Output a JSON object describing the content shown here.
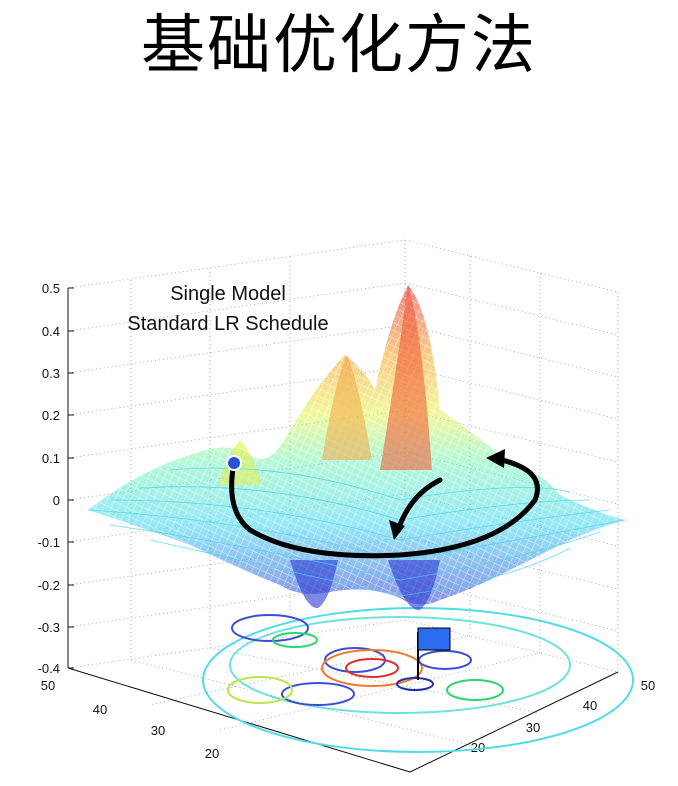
{
  "page": {
    "title": "基础优化方法"
  },
  "chart_data": {
    "type": "surface",
    "annotations": [
      "Single Model",
      "Standard LR Schedule"
    ],
    "z_axis": {
      "ticks": [
        0.5,
        0.4,
        0.3,
        0.2,
        0.1,
        0,
        -0.1,
        -0.2,
        -0.3,
        -0.4
      ],
      "range": [
        -0.4,
        0.5
      ]
    },
    "x_axis": {
      "ticks": [
        50,
        40,
        30,
        20
      ]
    },
    "y_axis": {
      "ticks": [
        20,
        30,
        40,
        50
      ]
    },
    "grid": true,
    "colormap": "jet",
    "trajectory": {
      "start_marker": "blue-dot",
      "end_marker": "blue-flag",
      "color": "#000000"
    }
  }
}
